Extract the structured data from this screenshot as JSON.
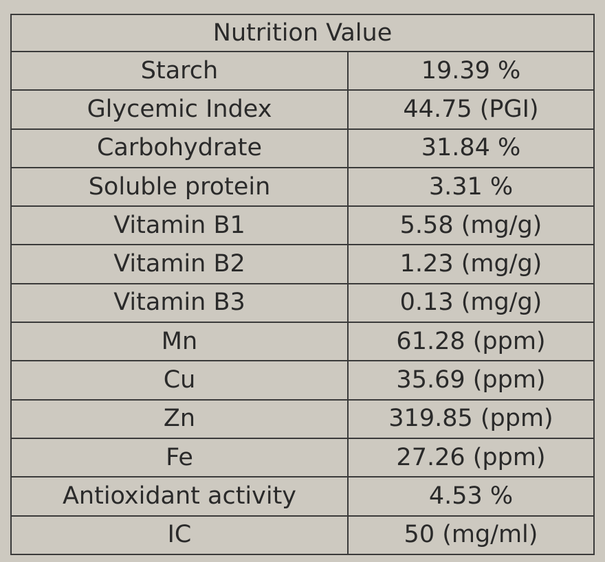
{
  "table": {
    "title": "Nutrition Value",
    "rows": [
      {
        "name": "Starch",
        "value": "19.39 %"
      },
      {
        "name": "Glycemic Index",
        "value": "44.75  (PGI)"
      },
      {
        "name": "Carbohydrate",
        "value": "31.84 %"
      },
      {
        "name": "Soluble protein",
        "value": "3.31 %"
      },
      {
        "name": "Vitamin B1",
        "value": "5.58  (mg/g)"
      },
      {
        "name": "Vitamin B2",
        "value": "1.23   (mg/g)"
      },
      {
        "name": "Vitamin B3",
        "value": "0.13  (mg/g)"
      },
      {
        "name": "Mn",
        "value": "61.28 (ppm)"
      },
      {
        "name": "Cu",
        "value": "35.69 (ppm)"
      },
      {
        "name": "Zn",
        "value": "319.85 (ppm)"
      },
      {
        "name": "Fe",
        "value": "27.26 (ppm)"
      },
      {
        "name": "Antioxidant activity",
        "value": "4.53 %"
      },
      {
        "name": "IC",
        "value": "50 (mg/ml)"
      }
    ]
  }
}
